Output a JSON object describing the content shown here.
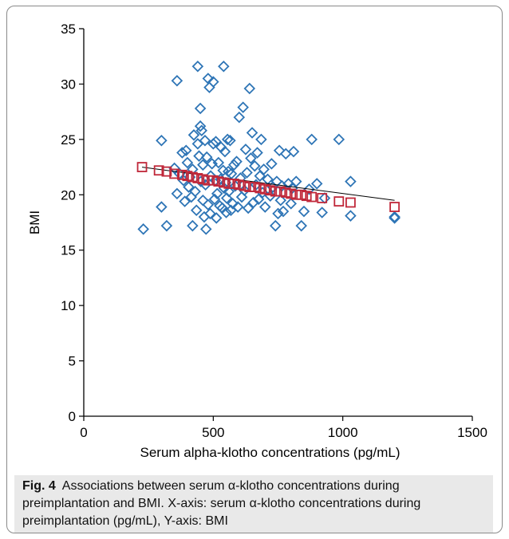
{
  "chart_data": {
    "type": "scatter",
    "title": "",
    "xlabel": "Serum alpha-klotho concentrations (pg/mL)",
    "ylabel": "BMI",
    "xlim": [
      0,
      1500
    ],
    "ylim": [
      0,
      35
    ],
    "xticks": [
      "0",
      "500",
      "1000",
      "1500"
    ],
    "yticks": [
      "0",
      "5",
      "10",
      "15",
      "20",
      "25",
      "30",
      "35"
    ],
    "grid": false,
    "series": [
      {
        "marker": "diamond",
        "color": "#2e75b6",
        "points": [
          [
            230,
            16.9
          ],
          [
            300,
            24.9
          ],
          [
            300,
            18.9
          ],
          [
            320,
            17.2
          ],
          [
            350,
            22.4
          ],
          [
            360,
            30.3
          ],
          [
            360,
            20.1
          ],
          [
            370,
            21.9
          ],
          [
            380,
            23.8
          ],
          [
            385,
            21.3
          ],
          [
            390,
            19.4
          ],
          [
            395,
            24.0
          ],
          [
            400,
            22.9
          ],
          [
            405,
            20.7
          ],
          [
            410,
            21.6
          ],
          [
            415,
            19.8
          ],
          [
            420,
            17.2
          ],
          [
            420,
            22.3
          ],
          [
            425,
            25.4
          ],
          [
            430,
            20.3
          ],
          [
            435,
            18.6
          ],
          [
            440,
            31.6
          ],
          [
            440,
            24.6
          ],
          [
            445,
            23.5
          ],
          [
            450,
            26.2
          ],
          [
            450,
            27.8
          ],
          [
            452,
            21.2
          ],
          [
            455,
            25.8
          ],
          [
            460,
            19.5
          ],
          [
            460,
            22.7
          ],
          [
            465,
            18.0
          ],
          [
            468,
            24.9
          ],
          [
            470,
            20.9
          ],
          [
            472,
            16.9
          ],
          [
            475,
            23.4
          ],
          [
            480,
            30.5
          ],
          [
            480,
            19.1
          ],
          [
            485,
            29.7
          ],
          [
            488,
            18.3
          ],
          [
            490,
            21.7
          ],
          [
            495,
            22.8
          ],
          [
            500,
            24.6
          ],
          [
            500,
            30.2
          ],
          [
            505,
            19.6
          ],
          [
            508,
            21.3
          ],
          [
            510,
            24.8
          ],
          [
            512,
            17.9
          ],
          [
            515,
            20.1
          ],
          [
            520,
            22.9
          ],
          [
            525,
            19.0
          ],
          [
            528,
            21.4
          ],
          [
            530,
            24.3
          ],
          [
            535,
            18.8
          ],
          [
            538,
            22.2
          ],
          [
            540,
            31.6
          ],
          [
            542,
            20.6
          ],
          [
            545,
            23.9
          ],
          [
            548,
            21.1
          ],
          [
            550,
            18.4
          ],
          [
            552,
            19.7
          ],
          [
            555,
            25.0
          ],
          [
            558,
            22.1
          ],
          [
            560,
            20.3
          ],
          [
            565,
            24.9
          ],
          [
            568,
            18.6
          ],
          [
            570,
            21.9
          ],
          [
            575,
            19.2
          ],
          [
            580,
            22.7
          ],
          [
            585,
            20.8
          ],
          [
            590,
            23.0
          ],
          [
            595,
            18.9
          ],
          [
            600,
            27.0
          ],
          [
            605,
            21.5
          ],
          [
            610,
            19.8
          ],
          [
            615,
            27.9
          ],
          [
            620,
            20.4
          ],
          [
            625,
            24.1
          ],
          [
            630,
            22.0
          ],
          [
            635,
            18.8
          ],
          [
            640,
            29.6
          ],
          [
            645,
            23.3
          ],
          [
            650,
            25.6
          ],
          [
            655,
            19.3
          ],
          [
            660,
            22.6
          ],
          [
            665,
            20.9
          ],
          [
            670,
            23.8
          ],
          [
            675,
            19.6
          ],
          [
            680,
            21.7
          ],
          [
            685,
            25.0
          ],
          [
            690,
            20.2
          ],
          [
            695,
            22.3
          ],
          [
            700,
            18.9
          ],
          [
            710,
            21.4
          ],
          [
            720,
            19.9
          ],
          [
            725,
            22.8
          ],
          [
            730,
            20.7
          ],
          [
            740,
            17.2
          ],
          [
            745,
            21.2
          ],
          [
            750,
            18.3
          ],
          [
            755,
            24.0
          ],
          [
            760,
            19.5
          ],
          [
            765,
            20.8
          ],
          [
            770,
            18.5
          ],
          [
            780,
            23.7
          ],
          [
            790,
            21.0
          ],
          [
            800,
            19.2
          ],
          [
            805,
            20.6
          ],
          [
            810,
            23.9
          ],
          [
            820,
            21.2
          ],
          [
            840,
            17.2
          ],
          [
            850,
            18.5
          ],
          [
            870,
            20.5
          ],
          [
            880,
            25.0
          ],
          [
            900,
            21.0
          ],
          [
            920,
            18.4
          ],
          [
            930,
            19.7
          ],
          [
            985,
            25.0
          ],
          [
            1030,
            21.2
          ],
          [
            1030,
            18.1
          ],
          [
            1200,
            17.9
          ],
          [
            1200,
            18.0
          ]
        ]
      },
      {
        "marker": "square",
        "color": "#c0283a",
        "points": [
          [
            225,
            22.5
          ],
          [
            290,
            22.2
          ],
          [
            320,
            22.1
          ],
          [
            350,
            21.9
          ],
          [
            380,
            21.8
          ],
          [
            400,
            21.7
          ],
          [
            420,
            21.6
          ],
          [
            440,
            21.5
          ],
          [
            460,
            21.4
          ],
          [
            480,
            21.3
          ],
          [
            500,
            21.3
          ],
          [
            520,
            21.2
          ],
          [
            540,
            21.1
          ],
          [
            560,
            21.0
          ],
          [
            580,
            21.0
          ],
          [
            600,
            20.9
          ],
          [
            620,
            20.8
          ],
          [
            640,
            20.7
          ],
          [
            660,
            20.7
          ],
          [
            680,
            20.6
          ],
          [
            700,
            20.5
          ],
          [
            720,
            20.4
          ],
          [
            740,
            20.3
          ],
          [
            760,
            20.3
          ],
          [
            780,
            20.2
          ],
          [
            800,
            20.1
          ],
          [
            820,
            20.0
          ],
          [
            840,
            20.0
          ],
          [
            860,
            19.9
          ],
          [
            880,
            19.8
          ],
          [
            920,
            19.7
          ],
          [
            985,
            19.4
          ],
          [
            1030,
            19.3
          ],
          [
            1200,
            18.9
          ]
        ]
      }
    ],
    "trendline": {
      "x": [
        225,
        1200
      ],
      "y": [
        22.5,
        19.5
      ],
      "color": "#000000"
    }
  },
  "caption": {
    "label": "Fig. 4",
    "text": "Associations between serum α-klotho concentrations during preimplantation and BMI. X-axis: serum α-klotho concentrations during preimplantation (pg/mL), Y-axis: BMI"
  }
}
